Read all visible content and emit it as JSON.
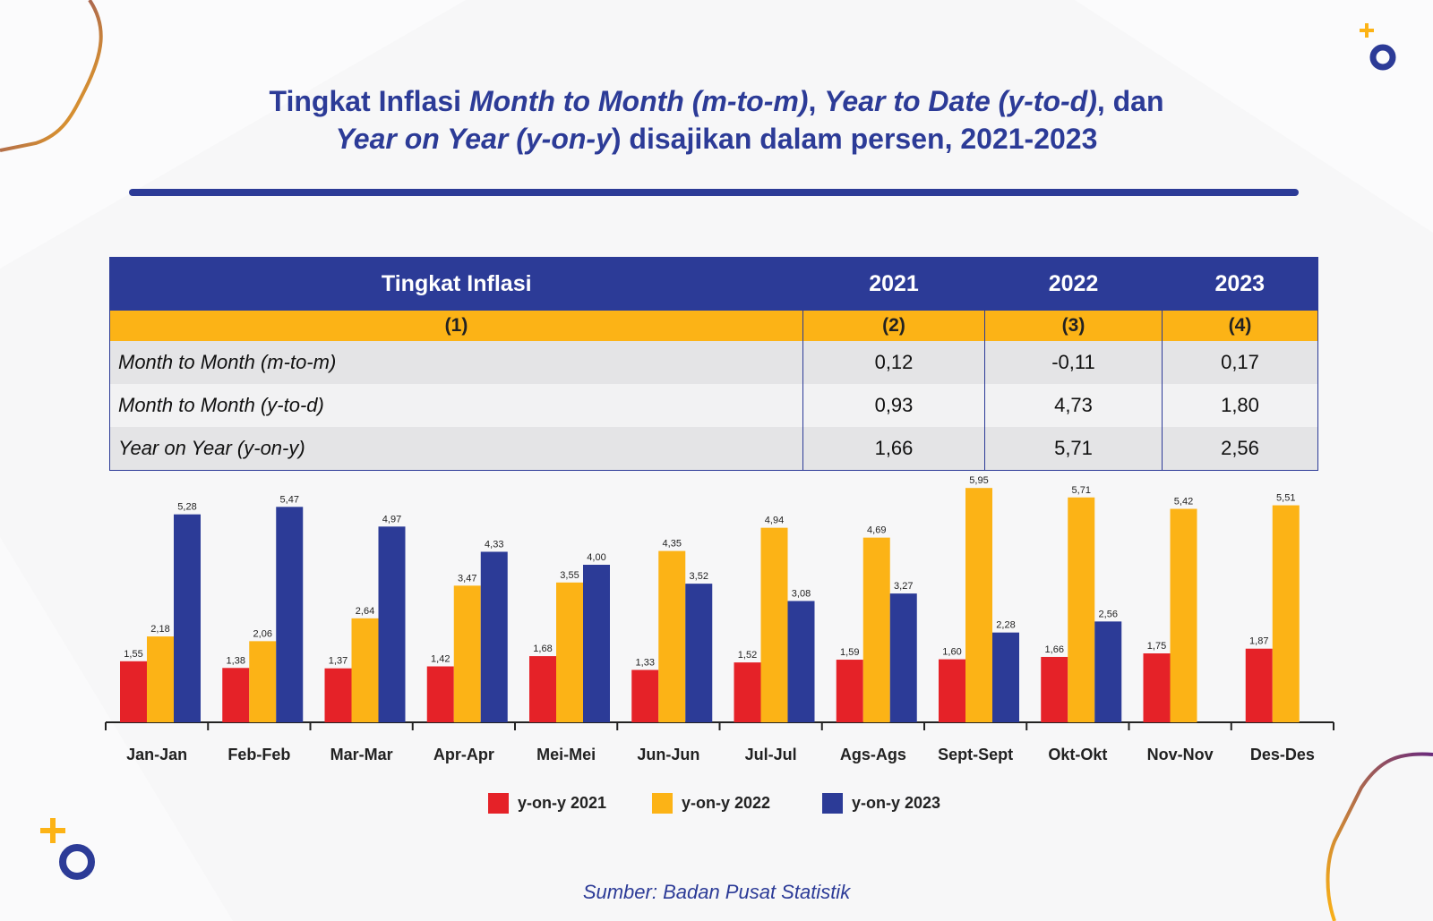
{
  "title": {
    "part1": "Tingkat Inflasi ",
    "part2": "Month to Month (m-to-m)",
    "part3": ", ",
    "part4": "Year to Date (y-to-d)",
    "part5": ", dan",
    "part6": "Year on Year (y-on-y",
    "part7": ") disajikan dalam persen, 2021-2023"
  },
  "table": {
    "headers": [
      "Tingkat Inflasi",
      "2021",
      "2022",
      "2023"
    ],
    "col_numbers": [
      "(1)",
      "(2)",
      "(3)",
      "(4)"
    ],
    "rows": [
      [
        "Month to Month (m-to-m)",
        "0,12",
        "-0,11",
        "0,17"
      ],
      [
        "Month to Month (y-to-d)",
        "0,93",
        "4,73",
        "1,80"
      ],
      [
        "Year on Year (y-on-y)",
        "1,66",
        "5,71",
        "2,56"
      ]
    ]
  },
  "chart_data": {
    "type": "bar",
    "categories": [
      "Jan-Jan",
      "Feb-Feb",
      "Mar-Mar",
      "Apr-Apr",
      "Mei-Mei",
      "Jun-Jun",
      "Jul-Jul",
      "Ags-Ags",
      "Sept-Sept",
      "Okt-Okt",
      "Nov-Nov",
      "Des-Des"
    ],
    "series": [
      {
        "name": "y-on-y 2021",
        "color": "#e52228",
        "values": [
          1.55,
          1.38,
          1.37,
          1.42,
          1.68,
          1.33,
          1.52,
          1.59,
          1.6,
          1.66,
          1.75,
          1.87
        ],
        "labels": [
          "1,55",
          "1,38",
          "1,37",
          "1,42",
          "1,68",
          "1,33",
          "1,52",
          "1,59",
          "1,60",
          "1,66",
          "1,75",
          "1,87"
        ]
      },
      {
        "name": "y-on-y 2022",
        "color": "#fcb316",
        "values": [
          2.18,
          2.06,
          2.64,
          3.47,
          3.55,
          4.35,
          4.94,
          4.69,
          5.95,
          5.71,
          5.42,
          5.51
        ],
        "labels": [
          "2,18",
          "2,06",
          "2,64",
          "3,47",
          "3,55",
          "4,35",
          "4,94",
          "4,69",
          "5,95",
          "5,71",
          "5,42",
          "5,51"
        ]
      },
      {
        "name": "y-on-y 2023",
        "color": "#2c3b97",
        "values": [
          5.28,
          5.47,
          4.97,
          4.33,
          4.0,
          3.52,
          3.08,
          3.27,
          2.28,
          2.56,
          null,
          null
        ],
        "labels": [
          "5,28",
          "5,47",
          "4,97",
          "4,33",
          "4,00",
          "3,52",
          "3,08",
          "3,27",
          "2,28",
          "2,56",
          null,
          null
        ]
      }
    ],
    "xlabel": "",
    "ylabel": "",
    "ylim": [
      0,
      6
    ],
    "grid": false,
    "legend": "bottom"
  },
  "source": "Sumber: Badan Pusat Statistik",
  "colors": {
    "primary": "#2c3b97",
    "accent": "#fcb316",
    "red": "#e52228"
  }
}
